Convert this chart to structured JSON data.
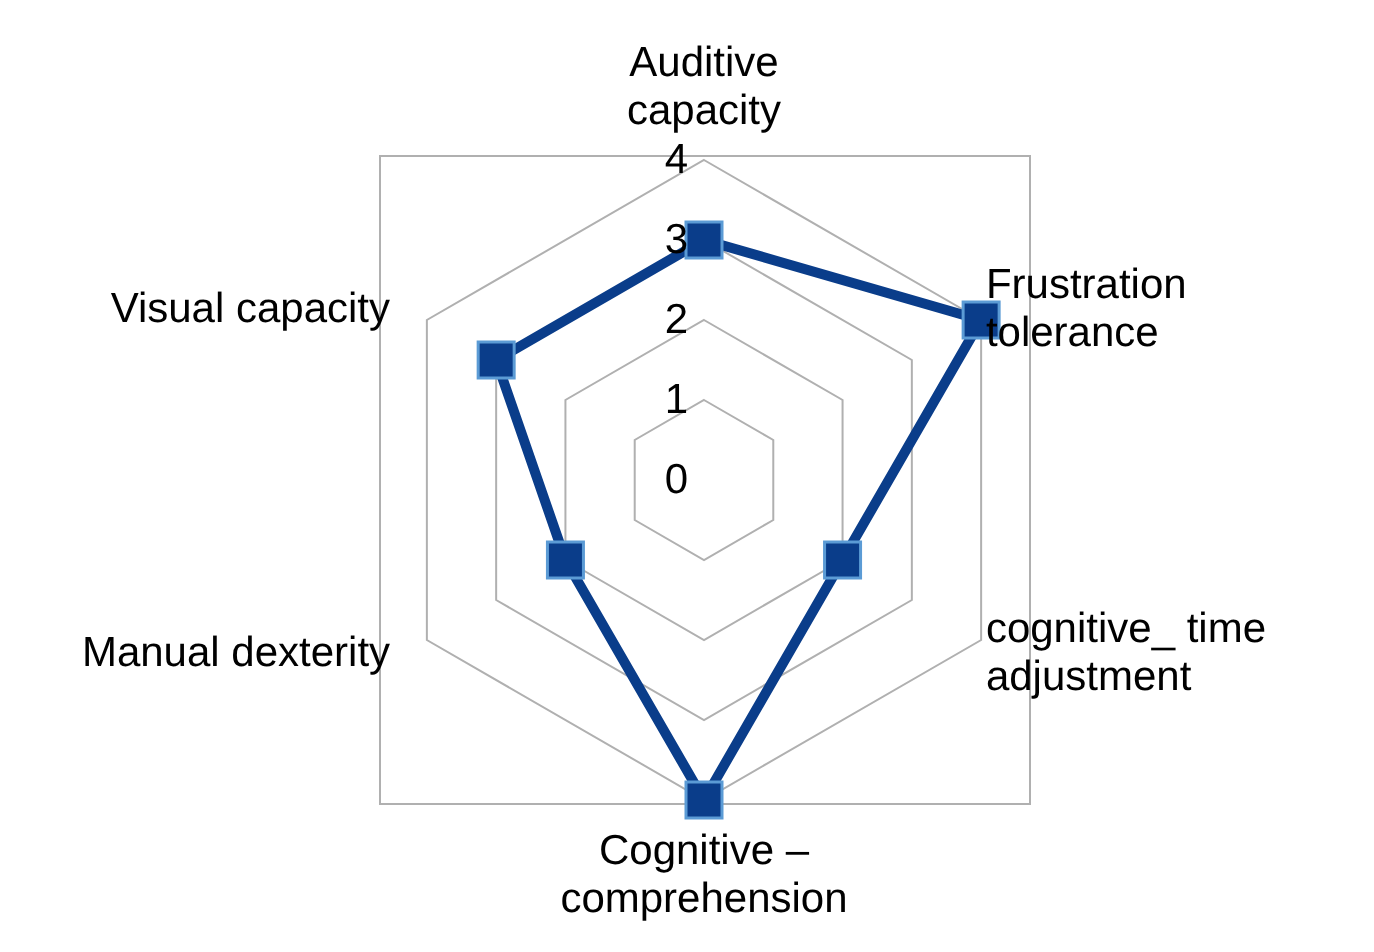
{
  "chart_data": {
    "type": "radar",
    "categories": [
      "Auditive\ncapacity",
      "Frustration\ntolerance",
      "cognitive_ time\nadjustment",
      "Cognitive –\ncomprehension",
      "Manual dexterity",
      "Visual capacity"
    ],
    "series": [
      {
        "color": "#0a3d8a",
        "values": [
          3,
          4,
          2,
          4,
          2,
          3
        ]
      }
    ],
    "ylim": [
      0,
      4
    ],
    "yticks": [
      0,
      1,
      2,
      3,
      4
    ],
    "marker": "square",
    "grid": true
  }
}
